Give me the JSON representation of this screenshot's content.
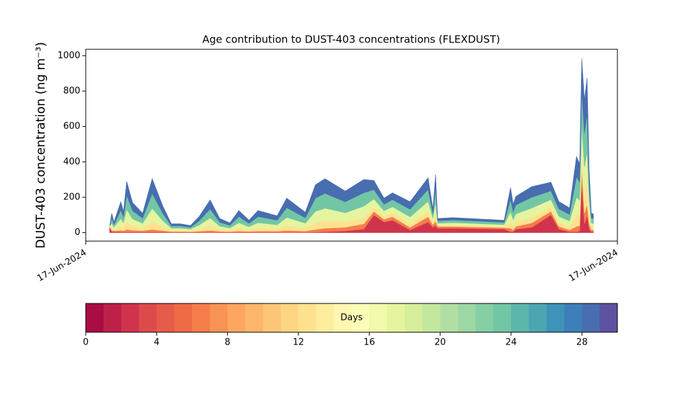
{
  "chart_data": {
    "type": "stacked_area",
    "title": "Age contribution to DUST-403 concentrations (FLEXDUST)",
    "ylabel": "DUST-403 concentration (ng m⁻³)",
    "xlim": [
      0,
      1
    ],
    "xticks": [
      {
        "value": 0,
        "label": "17-Jun-2024"
      },
      {
        "value": 1,
        "label": "17-Jun-2024"
      }
    ],
    "ylim": [
      -48,
      1036
    ],
    "yticks": [
      0,
      200,
      400,
      600,
      800,
      1000
    ],
    "x": [
      0.045,
      0.049,
      0.053,
      0.066,
      0.071,
      0.077,
      0.088,
      0.107,
      0.125,
      0.145,
      0.161,
      0.178,
      0.197,
      0.213,
      0.234,
      0.252,
      0.271,
      0.288,
      0.307,
      0.324,
      0.36,
      0.378,
      0.413,
      0.432,
      0.45,
      0.488,
      0.523,
      0.542,
      0.561,
      0.577,
      0.61,
      0.644,
      0.653,
      0.658,
      0.662,
      0.69,
      0.787,
      0.799,
      0.804,
      0.809,
      0.839,
      0.875,
      0.89,
      0.91,
      0.923,
      0.929,
      0.933,
      0.938,
      0.943,
      0.947,
      0.951,
      0.955
    ],
    "series": [
      {
        "color": "#d0344c",
        "values": [
          30,
          5,
          5,
          3,
          3,
          3,
          3,
          3,
          3,
          3,
          2,
          2,
          2,
          2,
          2,
          2,
          2,
          2,
          2,
          2,
          2,
          2,
          2,
          3,
          5,
          10,
          20,
          100,
          60,
          70,
          15,
          60,
          30,
          40,
          25,
          25,
          20,
          5,
          5,
          20,
          30,
          100,
          20,
          5,
          5,
          10,
          300,
          50,
          100,
          20,
          5,
          5
        ]
      },
      {
        "color": "#f57d4a",
        "values": [
          3,
          8,
          5,
          10,
          8,
          15,
          10,
          8,
          15,
          8,
          4,
          4,
          3,
          6,
          10,
          5,
          4,
          7,
          5,
          7,
          6,
          10,
          7,
          15,
          20,
          20,
          30,
          20,
          15,
          20,
          15,
          30,
          15,
          25,
          10,
          10,
          8,
          20,
          10,
          15,
          25,
          20,
          15,
          10,
          30,
          30,
          60,
          60,
          60,
          30,
          10,
          10
        ]
      },
      {
        "color": "#fee290",
        "values": [
          3,
          15,
          8,
          25,
          17,
          45,
          25,
          16,
          45,
          22,
          8,
          8,
          6,
          13,
          27,
          12,
          8,
          18,
          10,
          18,
          14,
          28,
          17,
          38,
          42,
          30,
          35,
          25,
          18,
          22,
          22,
          30,
          13,
          38,
          7,
          8,
          6,
          35,
          22,
          28,
          32,
          25,
          22,
          20,
          65,
          55,
          100,
          100,
          120,
          50,
          15,
          15
        ]
      },
      {
        "color": "#e5f49e",
        "values": [
          1,
          25,
          13,
          41,
          28,
          68,
          40,
          25,
          73,
          35,
          11,
          11,
          9,
          21,
          44,
          18,
          12,
          29,
          16,
          29,
          22,
          46,
          27,
          64,
          71,
          52,
          64,
          45,
          31,
          34,
          37,
          57,
          23,
          68,
          11,
          13,
          11,
          58,
          37,
          43,
          52,
          42,
          35,
          31,
          99,
          88,
          157,
          162,
          178,
          75,
          24,
          22
        ]
      },
      {
        "color": "#72c6a5",
        "values": [
          1,
          29,
          15,
          48,
          32,
          80,
          46,
          29,
          85,
          41,
          13,
          13,
          10,
          24,
          51,
          22,
          15,
          35,
          19,
          35,
          26,
          55,
          31,
          75,
          84,
          62,
          76,
          53,
          36,
          40,
          43,
          67,
          27,
          80,
          14,
          15,
          13,
          69,
          43,
          50,
          61,
          49,
          42,
          37,
          116,
          104,
          184,
          189,
          209,
          88,
          28,
          27
        ]
      },
      {
        "color": "#486db0",
        "values": [
          2,
          28,
          14,
          48,
          32,
          79,
          46,
          29,
          84,
          41,
          12,
          12,
          10,
          24,
          51,
          21,
          14,
          34,
          18,
          34,
          25,
          54,
          31,
          75,
          83,
          61,
          75,
          52,
          35,
          39,
          43,
          66,
          27,
          79,
          13,
          14,
          12,
          68,
          43,
          49,
          60,
          49,
          41,
          37,
          115,
          103,
          184,
          189,
          208,
          87,
          28,
          26
        ]
      }
    ],
    "colorbar": {
      "label": "Days",
      "lim": [
        0,
        30
      ],
      "ticks": [
        0,
        4,
        8,
        12,
        16,
        20,
        24,
        28
      ],
      "colors": [
        "#a90d44",
        "#be2148",
        "#d0344c",
        "#dd4a4c",
        "#e65b4a",
        "#ee6b45",
        "#f57d4a",
        "#f99355",
        "#fca660",
        "#fdb66b",
        "#fdc576",
        "#fed583",
        "#fee290",
        "#feed9e",
        "#fff7b1",
        "#fbfdb9",
        "#f2faab",
        "#e5f49e",
        "#d6ee9b",
        "#c4e79e",
        "#b1dfa3",
        "#9dd7a4",
        "#86cea4",
        "#72c6a5",
        "#5db6aa",
        "#4ca6b2",
        "#3d93b8",
        "#3d7fb8",
        "#486db0",
        "#5e52a3"
      ]
    }
  }
}
